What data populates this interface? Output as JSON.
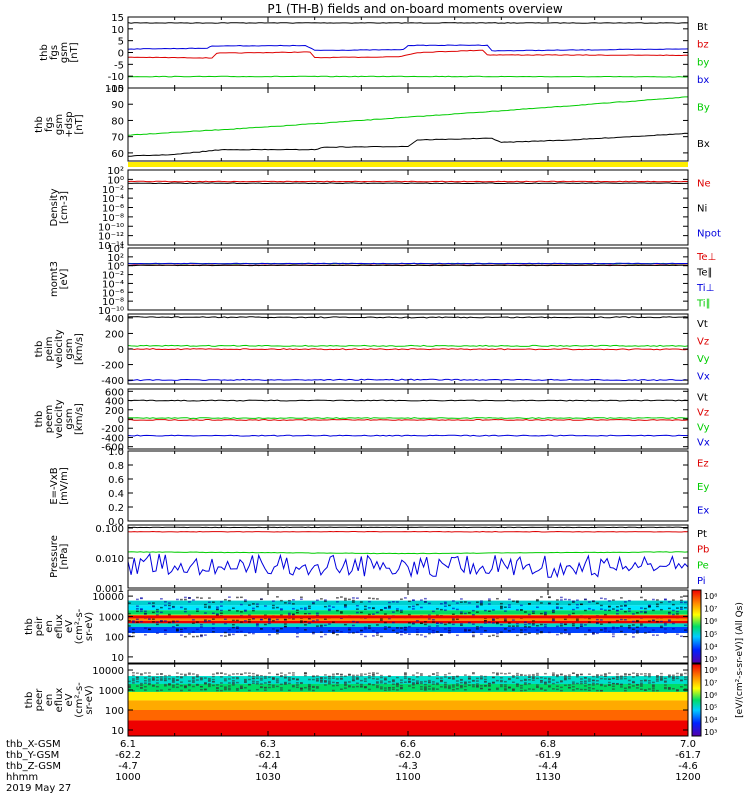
{
  "title": "P1  (TH-B) fields and on-board moments overview",
  "colors": {
    "black": "#000000",
    "red": "#dd0000",
    "green": "#00cc00",
    "blue": "#0000dd",
    "yellow": "#ffee00"
  },
  "chart_data": {
    "type": "line",
    "x_axis": {
      "ticks": [
        "1000",
        "1030",
        "1100",
        "1130",
        "1200"
      ],
      "time_range": [
        "10:00",
        "12:00"
      ],
      "date_label": "2019 May 27",
      "rows": [
        {
          "label": "thb_X-GSM",
          "values": [
            "6.1",
            "6.3",
            "6.6",
            "6.8",
            "7.0"
          ]
        },
        {
          "label": "thb_Y-GSM",
          "values": [
            "-62.2",
            "-62.1",
            "-62.0",
            "-61.9",
            "-61.7"
          ]
        },
        {
          "label": "thb_Z-GSM",
          "values": [
            "-4.7",
            "-4.4",
            "-4.3",
            "-4.4",
            "-4.6"
          ]
        },
        {
          "label": "hhmm",
          "values": [
            "1000",
            "1030",
            "1100",
            "1130",
            "1200"
          ]
        }
      ]
    },
    "panels": [
      {
        "id": "fgs-gsm",
        "ylabel": [
          "thb",
          "fgs",
          "gsm",
          "[nT]"
        ],
        "ylim": [
          -15,
          15
        ],
        "yticks": [
          "15",
          "10",
          "5",
          "0",
          "-5",
          "-10",
          "-15"
        ],
        "legend": [
          {
            "name": "Bt",
            "color": "black"
          },
          {
            "name": "bz",
            "color": "red"
          },
          {
            "name": "by",
            "color": "green"
          },
          {
            "name": "bx",
            "color": "blue"
          }
        ],
        "series": [
          {
            "name": "Bt",
            "color": "black",
            "points": [
              [
                0,
                12.5
              ],
              [
                60,
                12.5
              ],
              [
                120,
                12.5
              ]
            ]
          },
          {
            "name": "bz",
            "color": "red",
            "points": [
              [
                0,
                -2
              ],
              [
                18,
                -2.3
              ],
              [
                19,
                -0.3
              ],
              [
                39,
                0.2
              ],
              [
                40,
                -2.2
              ],
              [
                58,
                -1.8
              ],
              [
                62,
                0
              ],
              [
                76,
                1
              ],
              [
                77,
                -1
              ],
              [
                120,
                -1.2
              ]
            ]
          },
          {
            "name": "by",
            "color": "green",
            "points": [
              [
                0,
                -10.2
              ],
              [
                60,
                -10.1
              ],
              [
                120,
                -10.3
              ]
            ]
          },
          {
            "name": "bx",
            "color": "blue",
            "points": [
              [
                0,
                1.5
              ],
              [
                17,
                1.8
              ],
              [
                18,
                2.8
              ],
              [
                38,
                2.9
              ],
              [
                40,
                0.9
              ],
              [
                59,
                1.2
              ],
              [
                60,
                3
              ],
              [
                77,
                3.1
              ],
              [
                78,
                0.7
              ],
              [
                120,
                1.5
              ]
            ]
          }
        ]
      },
      {
        "id": "fgs-gsm-dsp",
        "ylabel": [
          "thb",
          "fgs",
          "gsm",
          "+dsp",
          "[nT]"
        ],
        "ylim": [
          55,
          100
        ],
        "yticks": [
          "100",
          "90",
          "80",
          "70",
          "60"
        ],
        "legend": [
          {
            "name": "By",
            "color": "green"
          },
          {
            "name": "Bx",
            "color": "black"
          }
        ],
        "series": [
          {
            "name": "By",
            "color": "green",
            "points": [
              [
                0,
                71
              ],
              [
                30,
                76
              ],
              [
                60,
                82
              ],
              [
                90,
                88
              ],
              [
                120,
                94.5
              ]
            ]
          },
          {
            "name": "Bx",
            "color": "black",
            "points": [
              [
                0,
                58
              ],
              [
                10,
                59
              ],
              [
                20,
                62
              ],
              [
                40,
                62
              ],
              [
                42,
                63.5
              ],
              [
                60,
                64
              ],
              [
                62,
                68
              ],
              [
                78,
                69
              ],
              [
                80,
                66.5
              ],
              [
                95,
                68
              ],
              [
                120,
                72
              ]
            ]
          }
        ]
      },
      {
        "id": "density",
        "ylabel": [
          "Density",
          "[cm-3]"
        ],
        "yscale": "log",
        "ylim": [
          -14,
          2
        ],
        "yticks": [
          "10²",
          "10⁰",
          "10⁻²",
          "10⁻⁴",
          "10⁻⁶",
          "10⁻⁸",
          "10⁻¹⁰",
          "10⁻¹²",
          "10⁻¹⁴"
        ],
        "legend": [
          {
            "name": "Ne",
            "color": "red"
          },
          {
            "name": "Ni",
            "color": "black"
          },
          {
            "name": "Npot",
            "color": "blue"
          }
        ],
        "series": [
          {
            "name": "Ne",
            "color": "red",
            "points": [
              [
                0,
                0.35
              ],
              [
                120,
                0.35
              ]
            ]
          },
          {
            "name": "Ni",
            "color": "black",
            "points": [
              [
                0,
                0.15
              ],
              [
                120,
                0.15
              ]
            ]
          }
        ]
      },
      {
        "id": "mom",
        "ylabel": [
          "momt3",
          "[eV]"
        ],
        "yscale": "log",
        "ylim": [
          -10,
          4
        ],
        "yticks": [
          "10⁴",
          "10²",
          "10⁰",
          "10⁻²",
          "10⁻⁴",
          "10⁻⁶",
          "10⁻⁸",
          "10⁻¹⁰"
        ],
        "legend": [
          {
            "name": "Te⊥",
            "color": "red"
          },
          {
            "name": "Te∥",
            "color": "black"
          },
          {
            "name": "Ti⊥",
            "color": "blue"
          },
          {
            "name": "Ti∥",
            "color": "green"
          }
        ],
        "series": [
          {
            "name": "Ti∥",
            "color": "green",
            "points": [
              [
                0,
                3
              ],
              [
                120,
                3
              ]
            ]
          },
          {
            "name": "Ti⊥",
            "color": "blue",
            "points": [
              [
                0,
                3.1
              ],
              [
                120,
                3.1
              ]
            ]
          },
          {
            "name": "Te⊥",
            "color": "red",
            "points": [
              [
                0,
                1.3
              ],
              [
                120,
                1.3
              ]
            ]
          },
          {
            "name": "Te∥",
            "color": "black",
            "points": [
              [
                0,
                1.2
              ],
              [
                120,
                1.2
              ]
            ]
          }
        ]
      },
      {
        "id": "peim",
        "ylabel": [
          "thb",
          "peim",
          "velocity",
          "gsm",
          "[km/s]"
        ],
        "ylim": [
          -450,
          450
        ],
        "yticks": [
          "400",
          "200",
          "0",
          "-200",
          "-400"
        ],
        "legend": [
          {
            "name": "Vt",
            "color": "black"
          },
          {
            "name": "Vz",
            "color": "red"
          },
          {
            "name": "Vy",
            "color": "green"
          },
          {
            "name": "Vx",
            "color": "blue"
          }
        ],
        "series": [
          {
            "name": "Vt",
            "color": "black",
            "points": [
              [
                0,
                410
              ],
              [
                60,
                405
              ],
              [
                120,
                410
              ]
            ]
          },
          {
            "name": "Vz",
            "color": "red",
            "points": [
              [
                0,
                0
              ],
              [
                120,
                -5
              ]
            ]
          },
          {
            "name": "Vy",
            "color": "green",
            "points": [
              [
                0,
                40
              ],
              [
                120,
                40
              ]
            ]
          },
          {
            "name": "Vx",
            "color": "blue",
            "points": [
              [
                0,
                -400
              ],
              [
                60,
                -395
              ],
              [
                120,
                -400
              ]
            ]
          }
        ]
      },
      {
        "id": "peem",
        "ylabel": [
          "thb",
          "peem",
          "velocity",
          "gsm",
          "[km/s]"
        ],
        "ylim": [
          -650,
          650
        ],
        "yticks": [
          "600",
          "400",
          "200",
          "0",
          "-200",
          "-400",
          "-600"
        ],
        "legend": [
          {
            "name": "Vt",
            "color": "black"
          },
          {
            "name": "Vz",
            "color": "red"
          },
          {
            "name": "Vy",
            "color": "green"
          },
          {
            "name": "Vx",
            "color": "blue"
          }
        ],
        "series": [
          {
            "name": "Vt",
            "color": "black",
            "points": [
              [
                0,
                400
              ],
              [
                120,
                400
              ]
            ]
          },
          {
            "name": "Vy",
            "color": "green",
            "points": [
              [
                0,
                20
              ],
              [
                120,
                20
              ]
            ]
          },
          {
            "name": "Vz",
            "color": "red",
            "points": [
              [
                0,
                -20
              ],
              [
                120,
                -20
              ]
            ]
          },
          {
            "name": "Vx",
            "color": "blue",
            "points": [
              [
                0,
                -360
              ],
              [
                120,
                -360
              ]
            ]
          }
        ]
      },
      {
        "id": "efield",
        "ylabel": [
          "E=-VxB",
          "[mV/m]"
        ],
        "ylim": [
          0,
          1
        ],
        "yticks": [
          "1.0",
          "0.8",
          "0.6",
          "0.4",
          "0.2",
          "0.0"
        ],
        "legend": [
          {
            "name": "Ez",
            "color": "red"
          },
          {
            "name": "Ey",
            "color": "green"
          },
          {
            "name": "Ex",
            "color": "blue"
          }
        ],
        "series": []
      },
      {
        "id": "pressure",
        "ylabel": [
          "Pressure",
          "[nPa]"
        ],
        "yscale": "log",
        "ylim": [
          -3,
          -0.9
        ],
        "yticks": [
          "0.100",
          "0.010",
          "0.001"
        ],
        "legend": [
          {
            "name": "Pt",
            "color": "black"
          },
          {
            "name": "Pb",
            "color": "red"
          },
          {
            "name": "Pe",
            "color": "green"
          },
          {
            "name": "Pi",
            "color": "blue"
          }
        ],
        "series": [
          {
            "name": "Pt",
            "color": "black",
            "points": [
              [
                0,
                0.105
              ],
              [
                120,
                0.105
              ]
            ]
          },
          {
            "name": "Pb",
            "color": "red",
            "points": [
              [
                0,
                0.075
              ],
              [
                120,
                0.075
              ]
            ]
          },
          {
            "name": "Pe",
            "color": "green",
            "points": [
              [
                0,
                0.016
              ],
              [
                60,
                0.014
              ],
              [
                120,
                0.016
              ]
            ]
          },
          {
            "name": "Pi",
            "color": "blue",
            "points": [
              [
                0,
                0.006
              ],
              [
                60,
                0.0055
              ],
              [
                120,
                0.005
              ]
            ]
          }
        ]
      },
      {
        "id": "peir",
        "ylabel": [
          "thb",
          "peir",
          "en",
          "eflux",
          "eV",
          "(cm²-s-",
          "sr-eV)"
        ],
        "yscale": "log",
        "ylim": [
          5,
          20000
        ],
        "yticks": [
          "10000",
          "1000",
          "100",
          "10"
        ],
        "type": "heatmap"
      },
      {
        "id": "peer",
        "ylabel": [
          "thb",
          "peer",
          "en",
          "eflux",
          "eV",
          "(cm²-s-",
          "sr-eV)"
        ],
        "yscale": "log",
        "ylim": [
          5,
          20000
        ],
        "yticks": [
          "10000",
          "1000",
          "100",
          "10"
        ],
        "type": "heatmap"
      }
    ],
    "colorbar": {
      "ticks": [
        "10⁸",
        "10⁷",
        "10⁶",
        "10⁵",
        "10⁴",
        "10³"
      ],
      "label": "[eV/(cm²-s-sr-eV)] (All Qs)"
    }
  }
}
